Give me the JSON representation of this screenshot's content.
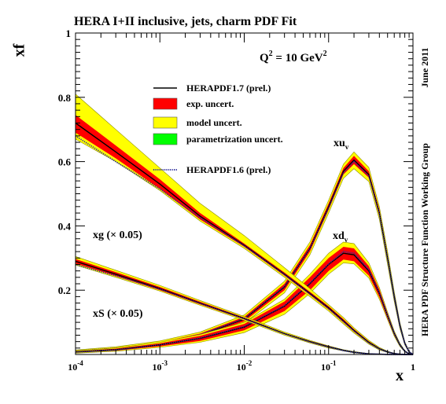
{
  "chart_data": {
    "type": "line",
    "title": "HERA I+II inclusive, jets, charm PDF Fit",
    "scale_label": {
      "base": "Q",
      "sup": "2",
      "mid": " = 10 GeV",
      "sup2": "2"
    },
    "xlabel": "x",
    "ylabel": "xf",
    "side_text": {
      "date": "June 2011",
      "group": "HERA PDF Structure Function Working Group"
    },
    "xscale": "log",
    "xlim": [
      0.0001,
      1
    ],
    "ylim": [
      0,
      1
    ],
    "x_ticks": [
      {
        "base": "10",
        "exp": "-4",
        "value": 0.0001
      },
      {
        "base": "10",
        "exp": "-3",
        "value": 0.001
      },
      {
        "base": "10",
        "exp": "-2",
        "value": 0.01
      },
      {
        "base": "10",
        "exp": "-1",
        "value": 0.1
      },
      {
        "base": "1",
        "exp": "",
        "value": 1
      }
    ],
    "y_ticks": [
      "0.2",
      "0.4",
      "0.6",
      "0.8",
      "1"
    ],
    "legend": [
      {
        "label": "HERAPDF1.7 (prel.)",
        "style": "line",
        "color": "#000000"
      },
      {
        "label": "exp. uncert.",
        "style": "box",
        "color": "#ff0000"
      },
      {
        "label": "model uncert.",
        "style": "box",
        "color": "#ffff00"
      },
      {
        "label": "parametrization uncert.",
        "style": "box",
        "color": "#00ff00"
      },
      {
        "label": "HERAPDF1.6 (prel.)",
        "style": "dotted",
        "color": "#2a2a9a"
      }
    ],
    "colors": {
      "exp": "#ff0000",
      "model": "#ffff00",
      "param": "#00ff00",
      "hera17": "#000000",
      "hera16": "#2a2a9a"
    },
    "series": [
      {
        "name": "xu_v",
        "labels": {
          "base": "xu",
          "sub": "v"
        },
        "x": [
          0.0001,
          0.0003,
          0.001,
          0.003,
          0.01,
          0.03,
          0.06,
          0.1,
          0.15,
          0.2,
          0.3,
          0.4,
          0.5,
          0.6,
          0.7,
          0.8,
          0.9,
          1
        ],
        "central": [
          0.01,
          0.018,
          0.034,
          0.06,
          0.11,
          0.21,
          0.33,
          0.46,
          0.57,
          0.605,
          0.56,
          0.44,
          0.3,
          0.18,
          0.09,
          0.035,
          0.008,
          0
        ],
        "exp_low": [
          0.008,
          0.015,
          0.03,
          0.055,
          0.103,
          0.2,
          0.32,
          0.45,
          0.56,
          0.592,
          0.55,
          0.43,
          0.29,
          0.172,
          0.085,
          0.032,
          0.007,
          0
        ],
        "exp_high": [
          0.012,
          0.021,
          0.038,
          0.065,
          0.117,
          0.22,
          0.34,
          0.47,
          0.58,
          0.618,
          0.57,
          0.45,
          0.31,
          0.188,
          0.095,
          0.038,
          0.009,
          0
        ],
        "band_low": [
          0.006,
          0.013,
          0.027,
          0.05,
          0.097,
          0.192,
          0.31,
          0.44,
          0.548,
          0.578,
          0.538,
          0.42,
          0.28,
          0.165,
          0.08,
          0.03,
          0.006,
          0
        ],
        "band_high": [
          0.014,
          0.024,
          0.042,
          0.07,
          0.123,
          0.228,
          0.35,
          0.48,
          0.592,
          0.63,
          0.582,
          0.46,
          0.32,
          0.195,
          0.1,
          0.04,
          0.01,
          0
        ],
        "v16": [
          0.011,
          0.019,
          0.035,
          0.062,
          0.112,
          0.212,
          0.33,
          0.455,
          0.565,
          0.6,
          0.555,
          0.437,
          0.298,
          0.18,
          0.09,
          0.035,
          0.008,
          0
        ]
      },
      {
        "name": "xd_v",
        "labels": {
          "base": "xd",
          "sub": "v"
        },
        "x": [
          0.0001,
          0.0003,
          0.001,
          0.003,
          0.01,
          0.03,
          0.06,
          0.1,
          0.15,
          0.2,
          0.3,
          0.4,
          0.5,
          0.6,
          0.7,
          0.8,
          0.9,
          1
        ],
        "central": [
          0.008,
          0.015,
          0.03,
          0.05,
          0.085,
          0.15,
          0.22,
          0.28,
          0.315,
          0.31,
          0.26,
          0.19,
          0.12,
          0.065,
          0.03,
          0.01,
          0.002,
          0
        ],
        "exp_low": [
          0.006,
          0.012,
          0.025,
          0.042,
          0.075,
          0.135,
          0.2,
          0.26,
          0.295,
          0.29,
          0.245,
          0.178,
          0.112,
          0.06,
          0.027,
          0.009,
          0.002,
          0
        ],
        "exp_high": [
          0.01,
          0.018,
          0.035,
          0.058,
          0.095,
          0.165,
          0.24,
          0.3,
          0.335,
          0.33,
          0.275,
          0.202,
          0.128,
          0.07,
          0.033,
          0.011,
          0.002,
          0
        ],
        "band_low": [
          0.004,
          0.01,
          0.022,
          0.038,
          0.068,
          0.125,
          0.19,
          0.25,
          0.285,
          0.282,
          0.238,
          0.172,
          0.108,
          0.057,
          0.025,
          0.008,
          0.001,
          0
        ],
        "band_high": [
          0.012,
          0.02,
          0.038,
          0.062,
          0.1,
          0.172,
          0.25,
          0.315,
          0.35,
          0.345,
          0.285,
          0.208,
          0.132,
          0.073,
          0.035,
          0.012,
          0.003,
          0
        ],
        "v16": [
          0.007,
          0.014,
          0.03,
          0.051,
          0.087,
          0.152,
          0.222,
          0.282,
          0.32,
          0.315,
          0.264,
          0.192,
          0.121,
          0.066,
          0.03,
          0.01,
          0.002,
          0
        ]
      },
      {
        "name": "xg (× 0.05)",
        "labels": {
          "text": "xg (× 0.05)"
        },
        "x": [
          0.0001,
          0.0003,
          0.001,
          0.003,
          0.01,
          0.03,
          0.06,
          0.1,
          0.15,
          0.2,
          0.3,
          0.4,
          0.5,
          0.6,
          0.7,
          0.8,
          0.9,
          1
        ],
        "central": [
          0.72,
          0.63,
          0.53,
          0.43,
          0.34,
          0.25,
          0.19,
          0.145,
          0.105,
          0.075,
          0.038,
          0.018,
          0.008,
          0.003,
          0.001,
          0,
          0,
          0
        ],
        "exp_low": [
          0.69,
          0.61,
          0.515,
          0.42,
          0.335,
          0.245,
          0.185,
          0.14,
          0.1,
          0.071,
          0.035,
          0.016,
          0.007,
          0.002,
          0.001,
          0,
          0,
          0
        ],
        "exp_high": [
          0.745,
          0.65,
          0.545,
          0.44,
          0.345,
          0.255,
          0.195,
          0.15,
          0.11,
          0.079,
          0.041,
          0.02,
          0.009,
          0.004,
          0.001,
          0,
          0,
          0
        ],
        "band_low": [
          0.67,
          0.6,
          0.51,
          0.415,
          0.33,
          0.24,
          0.18,
          0.135,
          0.095,
          0.067,
          0.032,
          0.014,
          0.006,
          0.002,
          0.001,
          0,
          0,
          0
        ],
        "band_high": [
          0.81,
          0.7,
          0.58,
          0.47,
          0.37,
          0.27,
          0.205,
          0.155,
          0.115,
          0.083,
          0.044,
          0.022,
          0.01,
          0.004,
          0.002,
          0,
          0,
          0
        ],
        "v16": [
          0.68,
          0.6,
          0.515,
          0.425,
          0.338,
          0.248,
          0.188,
          0.142,
          0.102,
          0.073,
          0.036,
          0.017,
          0.007,
          0.003,
          0.001,
          0,
          0,
          0
        ]
      },
      {
        "name": "xS (× 0.05)",
        "labels": {
          "text": "xS (× 0.05)"
        },
        "x": [
          0.0001,
          0.0003,
          0.001,
          0.003,
          0.01,
          0.03,
          0.06,
          0.1,
          0.15,
          0.2,
          0.3,
          0.4,
          0.5,
          0.6,
          0.7,
          0.8,
          0.9,
          1
        ],
        "central": [
          0.29,
          0.25,
          0.205,
          0.16,
          0.112,
          0.065,
          0.04,
          0.024,
          0.013,
          0.007,
          0.002,
          0.001,
          0,
          0,
          0,
          0,
          0,
          0
        ],
        "exp_low": [
          0.283,
          0.244,
          0.2,
          0.156,
          0.109,
          0.063,
          0.038,
          0.022,
          0.012,
          0.006,
          0.002,
          0.001,
          0,
          0,
          0,
          0,
          0,
          0
        ],
        "exp_high": [
          0.297,
          0.256,
          0.21,
          0.164,
          0.115,
          0.067,
          0.042,
          0.026,
          0.014,
          0.008,
          0.002,
          0.001,
          0,
          0,
          0,
          0,
          0,
          0
        ],
        "band_low": [
          0.278,
          0.24,
          0.197,
          0.153,
          0.106,
          0.06,
          0.036,
          0.02,
          0.011,
          0.005,
          0.001,
          0,
          0,
          0,
          0,
          0,
          0,
          0
        ],
        "band_high": [
          0.305,
          0.262,
          0.215,
          0.168,
          0.118,
          0.07,
          0.044,
          0.027,
          0.015,
          0.009,
          0.003,
          0.001,
          0,
          0,
          0,
          0,
          0,
          0
        ],
        "v16": [
          0.28,
          0.245,
          0.203,
          0.159,
          0.111,
          0.064,
          0.039,
          0.023,
          0.012,
          0.006,
          0.002,
          0.001,
          0,
          0,
          0,
          0,
          0,
          0
        ]
      }
    ]
  }
}
